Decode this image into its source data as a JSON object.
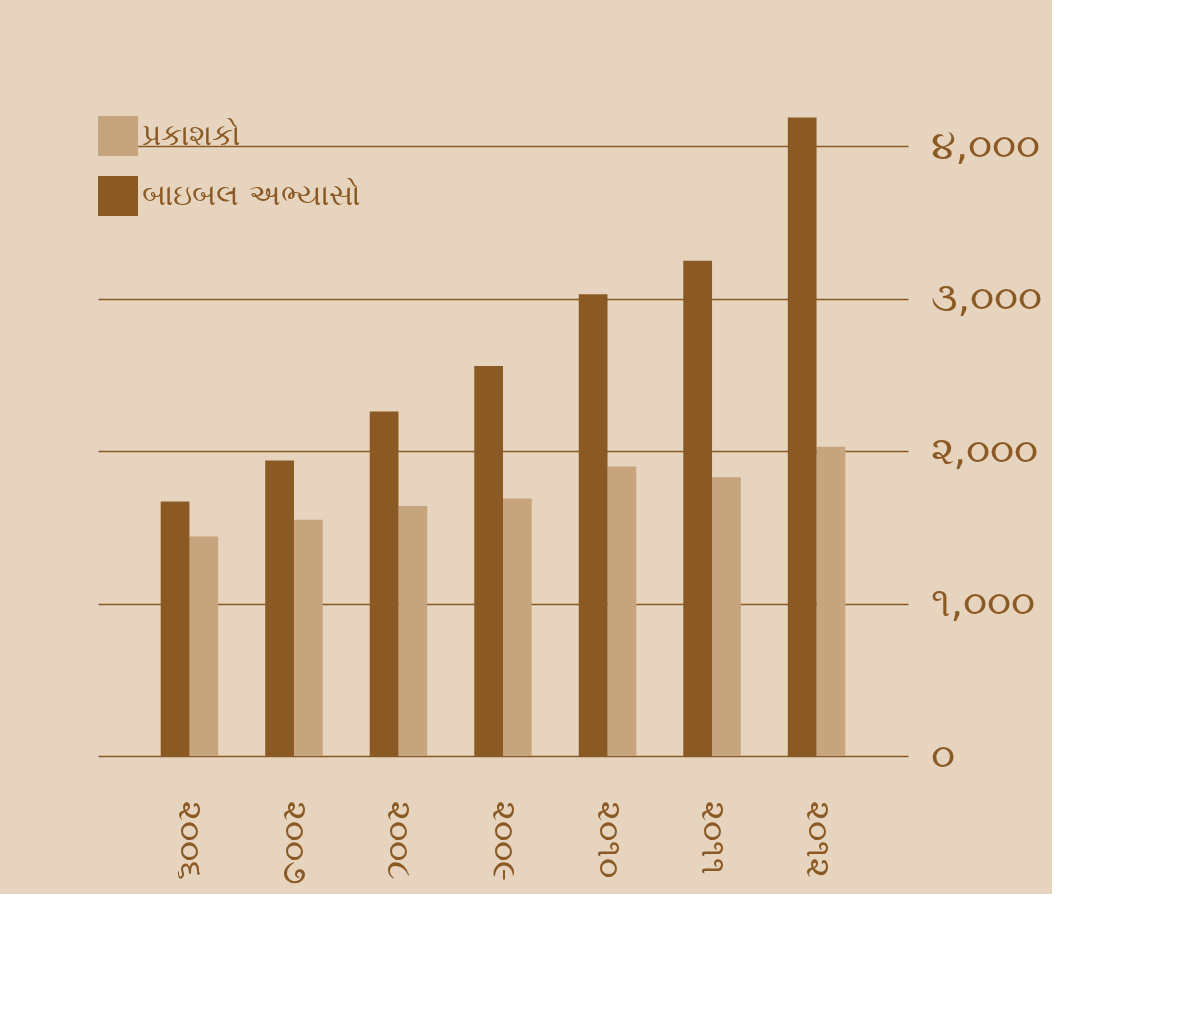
{
  "chart_data": {
    "type": "bar",
    "categories": [
      "૨૦૦૬",
      "૨૦૦૭",
      "૨૦૦૮",
      "૨૦૦૯",
      "૨૦૧૦",
      "૨૦૧૧",
      "૨૦૧૨"
    ],
    "series": [
      {
        "name": "પ્રકાશકો",
        "color": "#c6a47e",
        "values": [
          1440,
          1550,
          1640,
          1690,
          1900,
          1830,
          2030
        ]
      },
      {
        "name": "બાઇબલ અભ્યાસો",
        "color": "#8b5a24",
        "values": [
          1670,
          1940,
          2260,
          2560,
          3030,
          3250,
          4190
        ]
      }
    ],
    "ylim": [
      0,
      4200
    ],
    "yticks": [
      {
        "value": 0,
        "label": "૦"
      },
      {
        "value": 1000,
        "label": "૧,૦૦૦"
      },
      {
        "value": 2000,
        "label": "૨,૦૦૦"
      },
      {
        "value": 3000,
        "label": "૩,૦૦૦"
      },
      {
        "value": 4000,
        "label": "૪,૦૦૦"
      }
    ],
    "grid": "y",
    "legend": "top left"
  }
}
